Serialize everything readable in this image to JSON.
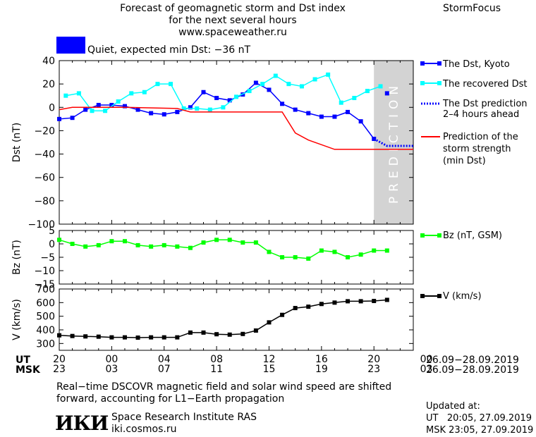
{
  "header": {
    "title_lines": [
      "Forecast of geomagnetic storm and Dst index",
      "for the next several hours",
      "www.spaceweather.ru"
    ],
    "brand": "StormFocus",
    "status_text": "Quiet, expected min Dst: −36 nT",
    "status_color": "#0000ff"
  },
  "legend": {
    "dst_kyoto": "The Dst, Kyoto",
    "dst_recovered": "The recovered Dst",
    "dst_prediction": [
      "The Dst prediction",
      "2–4 hours ahead"
    ],
    "storm_strength": [
      "Prediction of the",
      "storm strength",
      "(min Dst)"
    ],
    "bz": "Bz (nT, GSM)",
    "v": "V (km/s)"
  },
  "time_axis": {
    "ut_label": "UT",
    "msk_label": "MSK",
    "ut_ticks": [
      "20",
      "00",
      "04",
      "08",
      "12",
      "16",
      "20",
      "00"
    ],
    "msk_ticks": [
      "23",
      "03",
      "07",
      "11",
      "15",
      "19",
      "23",
      "03"
    ],
    "date_range_ut": "26.09−28.09.2019",
    "date_range_msk": "26.09−28.09.2019"
  },
  "footer": {
    "note_lines": [
      "Real−time DSCOVR magnetic field and solar wind speed are shifted",
      "forward, accounting for L1−Earth propagation"
    ],
    "institute": "Space Research Institute RAS",
    "site": "iki.cosmos.ru",
    "logo_text": "ИКИ",
    "updated_label": "Updated at:",
    "updated_ut": "UT   20:05, 27.09.2019",
    "updated_msk": "MSK 23:05, 27.09.2019"
  },
  "chart_data": [
    {
      "type": "line",
      "ylabel": "Dst (nT)",
      "ylim": [
        -100,
        40
      ],
      "yticks": [
        40,
        20,
        0,
        -20,
        -40,
        -60,
        -80,
        -100
      ],
      "xlim": [
        0,
        27
      ],
      "x_unit": "hours since 20 UT 26.09",
      "prediction_label": "PREDICTION",
      "prediction_region": [
        24,
        27
      ],
      "series": [
        {
          "key": "dst_kyoto",
          "color": "#0000ff",
          "marker": "square",
          "x": [
            0,
            1,
            2,
            3,
            4,
            5,
            6,
            7,
            8,
            9,
            10,
            11,
            12,
            13,
            14,
            15,
            16,
            17,
            18,
            19,
            20,
            21,
            22,
            23,
            24
          ],
          "y": [
            -10,
            -9,
            -2,
            2,
            2,
            1,
            -2,
            -5,
            -6,
            -4,
            0,
            13,
            8,
            6,
            11,
            21,
            15,
            3,
            -2,
            -5,
            -8,
            -8,
            -4,
            -12,
            -27
          ]
        },
        {
          "key": "dst_recovered",
          "color": "#00ffff",
          "marker": "square",
          "x": [
            0.5,
            1.5,
            2.5,
            3.5,
            4.5,
            5.5,
            6.5,
            7.5,
            8.5,
            9.5,
            10.5,
            11.5,
            12.5,
            13.5,
            14.5,
            15.5,
            16.5,
            17.5,
            18.5,
            19.5,
            20.5,
            21.5,
            22.5,
            23.5,
            24.5
          ],
          "y": [
            10,
            12,
            -3,
            -3,
            5,
            12,
            13,
            20,
            20,
            -1,
            -1,
            -2,
            0,
            9,
            14,
            20,
            27,
            20,
            18,
            24,
            28,
            4,
            8,
            14,
            18
          ]
        },
        {
          "key": "dst_kyoto_tail",
          "color": "#0000ff",
          "marker": "square",
          "x": [
            25
          ],
          "y": [
            12
          ]
        },
        {
          "key": "dst_prediction",
          "color": "#0000ff",
          "style": "dotted",
          "x": [
            24,
            25,
            26,
            27
          ],
          "y": [
            -27,
            -33,
            -33,
            -33
          ]
        },
        {
          "key": "storm_strength",
          "color": "#ff0000",
          "x": [
            0,
            1,
            3,
            5,
            9,
            10,
            15,
            16,
            17,
            18,
            19,
            21,
            27
          ],
          "y": [
            -2,
            0,
            0,
            0,
            -1,
            -4,
            -4,
            -4,
            -4,
            -22,
            -28,
            -36,
            -36
          ]
        }
      ]
    },
    {
      "type": "line",
      "ylabel": "Bz (nT)",
      "ylim": [
        -15,
        5
      ],
      "yticks": [
        5,
        0,
        -5,
        -10,
        -15
      ],
      "series": [
        {
          "key": "bz",
          "color": "#00ff00",
          "marker": "square",
          "x": [
            0,
            1,
            2,
            3,
            4,
            5,
            6,
            7,
            8,
            9,
            10,
            11,
            12,
            13,
            14,
            15,
            16,
            17,
            18,
            19,
            20,
            21,
            22,
            23,
            24,
            25
          ],
          "y": [
            1.5,
            0,
            -1,
            -0.5,
            1,
            1,
            -0.5,
            -1,
            -0.5,
            -1,
            -1.5,
            0.5,
            1.5,
            1.5,
            0.5,
            0.5,
            -3,
            -5,
            -5,
            -5.5,
            -2.5,
            -3,
            -5,
            -4,
            -2.5,
            -2.5
          ]
        }
      ]
    },
    {
      "type": "line",
      "ylabel": "V (km/s)",
      "ylim": [
        250,
        700
      ],
      "yticks": [
        700,
        600,
        500,
        400,
        300
      ],
      "series": [
        {
          "key": "v",
          "color": "#000000",
          "marker": "square",
          "x": [
            0,
            1,
            2,
            3,
            4,
            5,
            6,
            7,
            8,
            9,
            10,
            11,
            12,
            13,
            14,
            15,
            16,
            17,
            18,
            19,
            20,
            21,
            22,
            23,
            24,
            25
          ],
          "y": [
            360,
            355,
            352,
            350,
            345,
            345,
            343,
            345,
            345,
            345,
            380,
            380,
            368,
            365,
            370,
            395,
            455,
            510,
            560,
            570,
            590,
            600,
            610,
            610,
            612,
            620
          ]
        }
      ]
    }
  ]
}
